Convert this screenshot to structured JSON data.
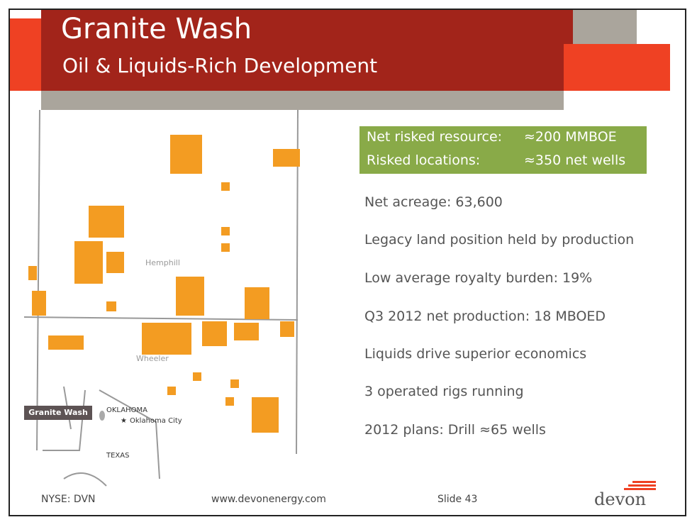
{
  "header": {
    "title": "Granite Wash",
    "subtitle": "Oil & Liquids-Rich Development"
  },
  "summary_box": {
    "rows": [
      [
        "Net risked resource:",
        "≈200 MMBOE"
      ],
      [
        "Risked locations:",
        "≈350 net wells"
      ]
    ]
  },
  "bullets": [
    "Net acreage: 63,600",
    "Legacy land position held by production",
    "Low average royalty burden: 19%",
    "Q3 2012 net production: 18 MBOED",
    "Liquids drive superior economics",
    "3 operated rigs running",
    "2012 plans: Drill ≈65 wells"
  ],
  "map": {
    "counties": [
      "Hemphill",
      "Wheeler"
    ],
    "inset": {
      "callout": "Granite Wash",
      "state_1": "OKLAHOMA",
      "city": "Oklahoma City",
      "state_2": "TEXAS"
    }
  },
  "footer": {
    "ticker": "NYSE: DVN",
    "website": "www.devonenergy.com",
    "slide": "Slide 43",
    "logo": "devon"
  }
}
